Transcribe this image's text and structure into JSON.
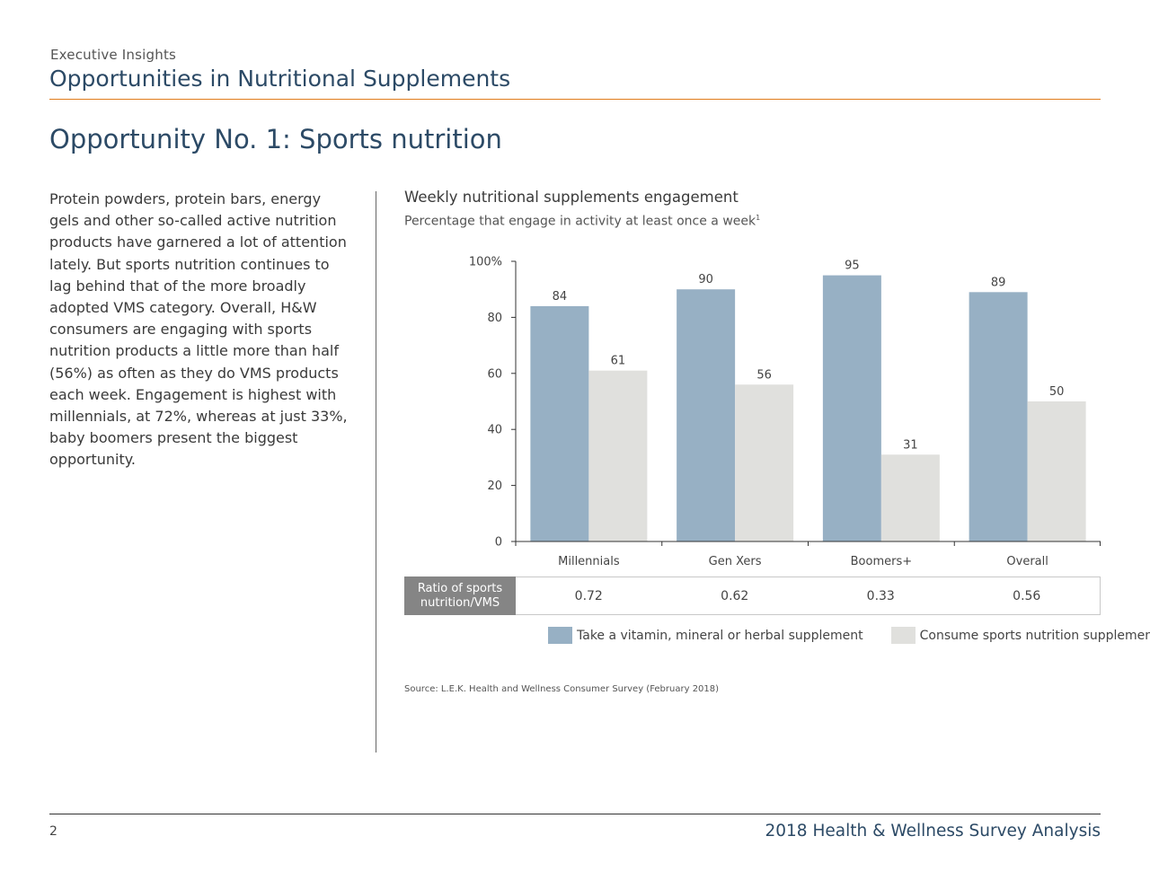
{
  "header": {
    "kicker": "Executive Insights",
    "title": "Opportunities in Nutritional Supplements"
  },
  "page_heading": "Opportunity No. 1: Sports nutrition",
  "body_text": "Protein powders, protein bars, energy gels and other so-called active nutrition products have garnered a lot of attention lately. But sports nutrition continues to lag behind that of the more broadly adopted VMS category. Overall, H&W consumers are engaging with sports nutrition products a little more than half (56%) as often as they do VMS products each week. Engagement is highest with millennials, at 72%, whereas at just 33%, baby boomers present the biggest opportunity.",
  "chart_data": {
    "type": "bar",
    "title": "Weekly nutritional supplements engagement",
    "subtitle": "Percentage that engage in activity at least once a week",
    "subtitle_footnote": "1",
    "categories": [
      "Millennials",
      "Gen Xers",
      "Boomers+",
      "Overall"
    ],
    "series": [
      {
        "name": "Take a vitamin, mineral or herbal supplement",
        "color": "#97b0c4",
        "values": [
          84,
          90,
          95,
          89
        ]
      },
      {
        "name": "Consume sports nutrition supplements",
        "color": "#e0e0dd",
        "values": [
          61,
          56,
          31,
          50
        ]
      }
    ],
    "ylim": [
      0,
      100
    ],
    "yticks": [
      "0",
      "20",
      "40",
      "60",
      "80",
      "100%"
    ],
    "legend_position": "bottom",
    "grid": false
  },
  "ratio_row": {
    "label": "Ratio of sports\nnutrition/VMS",
    "values": [
      "0.72",
      "0.62",
      "0.33",
      "0.56"
    ]
  },
  "source_note": "Source: L.E.K. Health and Wellness Consumer Survey (February 2018)",
  "footer": {
    "page_number": "2",
    "title": "2018 Health & Wellness Survey Analysis"
  }
}
